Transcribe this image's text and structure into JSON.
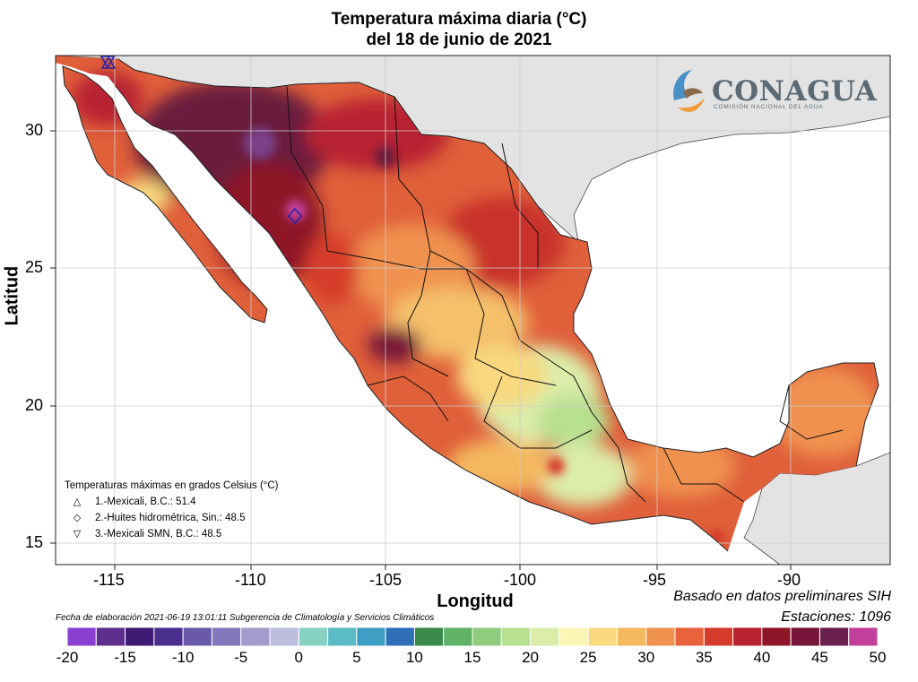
{
  "title": {
    "line1": "Temperatura máxima diaria (°C)",
    "line2": "del 18 de junio de 2021"
  },
  "axes": {
    "ylabel": "Latitud",
    "xlabel": "Longitud",
    "lon_ticks": [
      "-115",
      "-110",
      "-105",
      "-100",
      "-95",
      "-90"
    ],
    "lat_ticks": [
      "30",
      "25",
      "20",
      "15"
    ]
  },
  "logo": {
    "name": "CONAGUA",
    "subtitle": "COMISIÓN NACIONAL DEL AGUA"
  },
  "legend": {
    "heading": "Temperaturas máximas en grados Celsius (°C)",
    "items": [
      {
        "symbol": "△",
        "text": "1.-Mexicali, B.C.: 51.4"
      },
      {
        "symbol": "◇",
        "text": "2.-Huites hidrométrica, Sin.: 48.5"
      },
      {
        "symbol": "▽",
        "text": "3.-Mexicali SMN, B.C.: 48.5"
      }
    ]
  },
  "notes": {
    "source": "Basado en datos preliminares SIH",
    "stations": "Estaciones:  1096",
    "elaboration": "Fecha de elaboración 2021-06-19 13:01:11 Subgerencia de Climatología y Servicios Climáticos"
  },
  "colorbar": {
    "labels": [
      "-20",
      "-15",
      "-10",
      "-5",
      "0",
      "5",
      "10",
      "15",
      "20",
      "25",
      "30",
      "35",
      "40",
      "45",
      "50"
    ],
    "colors": [
      "#8a3fd0",
      "#5e2f8c",
      "#3e1a72",
      "#4a2f8f",
      "#6a58a9",
      "#8477bb",
      "#a19ccb",
      "#bdbde0",
      "#86d1c2",
      "#5cbcc6",
      "#3f9ec4",
      "#2f6fb8",
      "#3a8a4a",
      "#60b267",
      "#8fcc7e",
      "#b7e08f",
      "#dcedaa",
      "#fbf6b6",
      "#f8d97f",
      "#f4b85f",
      "#f0924f",
      "#e8623b",
      "#d63c2c",
      "#b82330",
      "#8e1428",
      "#78153a",
      "#6b1f4f",
      "#c2409a"
    ]
  },
  "markers": [
    {
      "name": "Mexicali, B.C.",
      "value": 51.4,
      "lon": -115.4,
      "lat": 32.6,
      "shape": "triangle-up"
    },
    {
      "name": "Huites hidrométrica, Sin.",
      "value": 48.5,
      "lon": -108.4,
      "lat": 26.9,
      "shape": "diamond"
    },
    {
      "name": "Mexicali SMN, B.C.",
      "value": 48.5,
      "lon": -115.5,
      "lat": 32.6,
      "shape": "triangle-down"
    }
  ]
}
